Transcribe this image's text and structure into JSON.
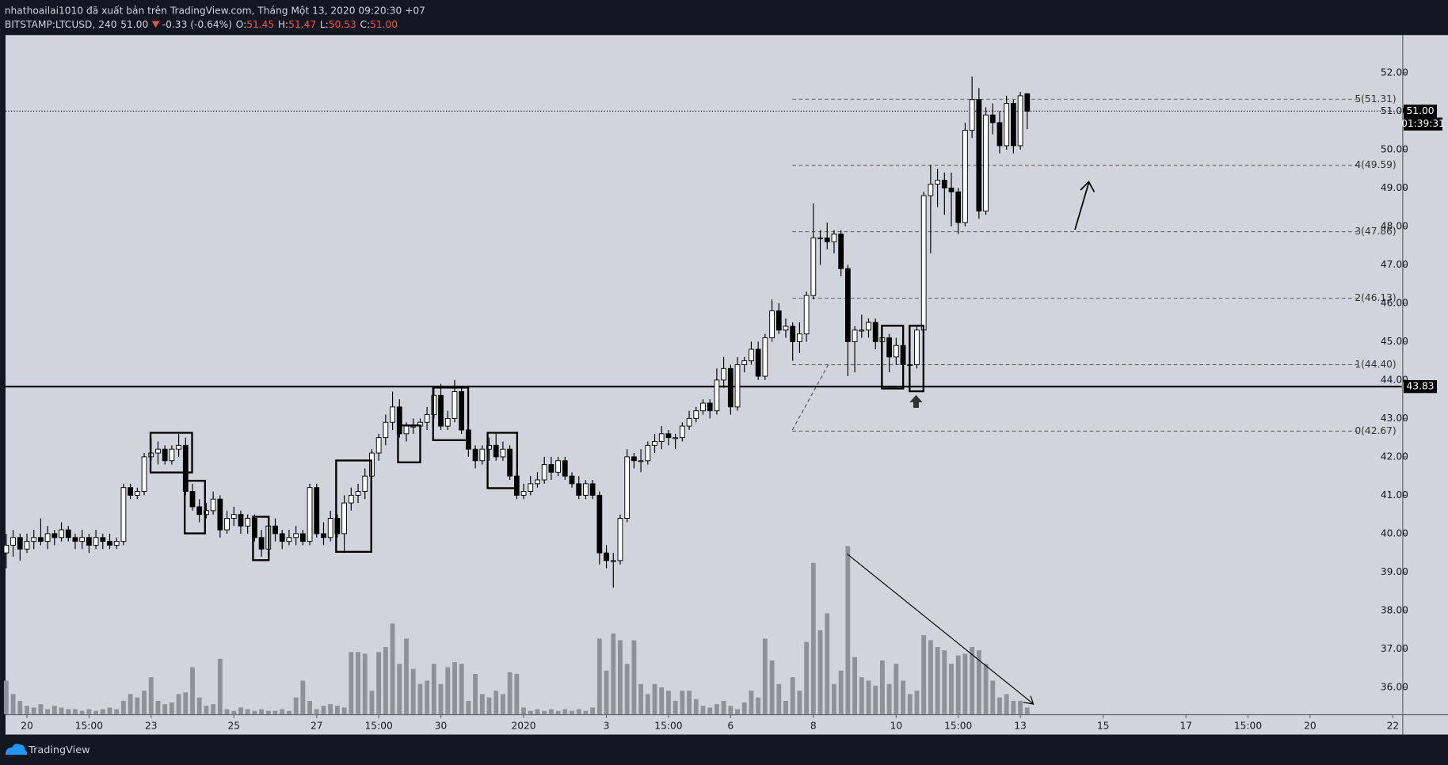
{
  "header": {
    "publisher_line": "nhathoailai1010 đã xuất bản trên TradingView.com, Tháng Một 13, 2020 09:20:30 +07",
    "symbol": "BITSTAMP:LTCUSD, 240",
    "price": "51.00",
    "change": "-0.33 (-0.64%)",
    "ohlc": [
      {
        "label": "O:",
        "value": "51.45"
      },
      {
        "label": "H:",
        "value": "51.47"
      },
      {
        "label": "L:",
        "value": "50.53"
      },
      {
        "label": "C:",
        "value": "51.00"
      }
    ]
  },
  "footer": {
    "brand": "TradingView"
  },
  "chart_data": {
    "type": "candlestick",
    "xlim": [
      -0.1,
      202.3
    ],
    "xticks": [
      {
        "value": 3,
        "label": "20"
      },
      {
        "value": 12,
        "label": "15:00"
      },
      {
        "value": 21,
        "label": "23"
      },
      {
        "value": 33,
        "label": "25"
      },
      {
        "value": 45,
        "label": "27"
      },
      {
        "value": 54,
        "label": "15:00"
      },
      {
        "value": 63,
        "label": "30"
      },
      {
        "value": 75,
        "label": "2020"
      },
      {
        "value": 87,
        "label": "3"
      },
      {
        "value": 96,
        "label": "15:00"
      },
      {
        "value": 105,
        "label": "6"
      },
      {
        "value": 117,
        "label": "8"
      },
      {
        "value": 129,
        "label": "10"
      },
      {
        "value": 138,
        "label": "15:00"
      },
      {
        "value": 147,
        "label": "13"
      },
      {
        "value": 159,
        "label": "15"
      },
      {
        "value": 171,
        "label": "17"
      },
      {
        "value": 180,
        "label": "15:00"
      },
      {
        "value": 189,
        "label": "20"
      },
      {
        "value": 201,
        "label": "22"
      }
    ],
    "ylim": [
      35.3,
      52.98
    ],
    "yticks": [
      {
        "value": 36,
        "label": "36.00"
      },
      {
        "value": 37,
        "label": "37.00"
      },
      {
        "value": 38,
        "label": "38.00"
      },
      {
        "value": 39,
        "label": "39.00"
      },
      {
        "value": 40,
        "label": "40.00"
      },
      {
        "value": 41,
        "label": "41.00"
      },
      {
        "value": 42,
        "label": "42.00"
      },
      {
        "value": 43,
        "label": "43.00"
      },
      {
        "value": 44,
        "label": "44.00"
      },
      {
        "value": 45,
        "label": "45.00"
      },
      {
        "value": 46,
        "label": "46.00"
      },
      {
        "value": 47,
        "label": "47.00"
      },
      {
        "value": 48,
        "label": "48.00"
      },
      {
        "value": 49,
        "label": "49.00"
      },
      {
        "value": 50,
        "label": "50.00"
      },
      {
        "value": 51,
        "label": "51.00"
      },
      {
        "value": 52,
        "label": "52.00"
      }
    ],
    "up_color": "#ffffff",
    "down_color": "#000000",
    "wick_color": "#000000",
    "volume_color": "#8e9198",
    "open": [
      39.5,
      39.7,
      39.9,
      39.6,
      39.8,
      39.9,
      39.8,
      40.0,
      39.9,
      40.1,
      39.9,
      39.8,
      39.9,
      39.7,
      39.9,
      39.8,
      39.7,
      39.8,
      41.2,
      41.0,
      41.1,
      42.0,
      42.1,
      42.2,
      41.9,
      42.2,
      42.3,
      41.1,
      40.7,
      40.5,
      40.6,
      40.9,
      40.1,
      40.4,
      40.5,
      40.2,
      40.4,
      39.9,
      39.6,
      40.2,
      40.0,
      39.8,
      39.9,
      40.0,
      39.8,
      41.2,
      40.0,
      39.9,
      40.4,
      40.0,
      40.8,
      41.0,
      41.1,
      41.5,
      42.1,
      42.5,
      42.9,
      43.3,
      42.6,
      42.8,
      42.8,
      42.9,
      43.1,
      43.6,
      42.8,
      43.0,
      43.7,
      42.7,
      42.2,
      41.9,
      42.2,
      42.3,
      42.0,
      42.2,
      41.5,
      41.0,
      41.1,
      41.3,
      41.4,
      41.8,
      41.6,
      41.9,
      41.5,
      41.3,
      41.0,
      41.3,
      41.0,
      39.5,
      39.3,
      39.3,
      40.4,
      42.0,
      41.9,
      41.9,
      42.3,
      42.4,
      42.6,
      42.5,
      42.5,
      42.8,
      43.0,
      43.2,
      43.4,
      43.2,
      44.0,
      44.3,
      43.3,
      44.4,
      44.5,
      44.8,
      44.1,
      45.1,
      45.8,
      45.3,
      45.4,
      45.0,
      45.2,
      46.2,
      47.7,
      47.7,
      47.6,
      47.8,
      46.9,
      45.0,
      45.3,
      45.3,
      45.5,
      45.0,
      45.1,
      44.6,
      44.9,
      44.4,
      44.4,
      45.3,
      48.8,
      49.1,
      49.2,
      49.0,
      48.9,
      48.1,
      50.5,
      51.3,
      48.4,
      50.9,
      50.7,
      50.1,
      51.2,
      50.1,
      51.45
    ],
    "high": [
      40.0,
      40.1,
      40.0,
      40.0,
      40.1,
      40.4,
      40.2,
      40.1,
      40.3,
      40.2,
      40.0,
      40.1,
      40.0,
      40.1,
      40.0,
      40.0,
      39.9,
      41.3,
      41.3,
      41.2,
      42.1,
      42.5,
      42.4,
      42.3,
      42.3,
      42.6,
      42.5,
      41.3,
      40.9,
      40.8,
      41.1,
      41.0,
      40.6,
      40.7,
      40.6,
      40.5,
      40.5,
      40.1,
      40.3,
      40.4,
      40.1,
      40.1,
      40.2,
      40.1,
      41.3,
      41.3,
      40.3,
      40.6,
      40.5,
      41.0,
      41.2,
      41.3,
      41.7,
      42.2,
      42.6,
      43.1,
      43.7,
      43.5,
      42.9,
      43.0,
      43.0,
      43.3,
      43.8,
      43.9,
      43.2,
      44.0,
      43.8,
      42.9,
      42.3,
      42.3,
      42.5,
      42.6,
      42.4,
      42.3,
      41.6,
      41.3,
      41.5,
      41.6,
      42.0,
      42.0,
      42.0,
      42.0,
      41.6,
      41.5,
      41.4,
      41.4,
      41.1,
      39.7,
      39.5,
      40.5,
      42.2,
      42.1,
      42.2,
      42.4,
      42.6,
      42.8,
      42.7,
      42.6,
      42.9,
      43.2,
      43.3,
      43.5,
      43.5,
      44.3,
      44.6,
      44.4,
      44.6,
      44.6,
      45.0,
      45.0,
      45.2,
      46.1,
      46.0,
      45.6,
      45.5,
      45.5,
      46.3,
      48.6,
      47.9,
      48.1,
      47.9,
      47.9,
      47.0,
      45.4,
      45.7,
      45.6,
      45.6,
      45.3,
      45.2,
      45.1,
      45.0,
      44.6,
      45.4,
      48.9,
      49.6,
      49.5,
      49.4,
      49.4,
      49.0,
      50.7,
      51.9,
      51.6,
      51.1,
      51.2,
      51.0,
      51.4,
      51.3,
      51.5,
      51.47
    ],
    "low": [
      39.1,
      39.4,
      39.3,
      39.5,
      39.6,
      39.7,
      39.6,
      39.7,
      39.8,
      39.8,
      39.6,
      39.6,
      39.5,
      39.6,
      39.6,
      39.6,
      39.6,
      39.7,
      40.9,
      40.9,
      41.0,
      41.9,
      41.8,
      41.8,
      41.8,
      42.0,
      41.0,
      40.6,
      40.3,
      40.4,
      40.5,
      39.9,
      40.0,
      40.2,
      40.0,
      40.0,
      39.8,
      39.4,
      39.5,
      39.8,
      39.6,
      39.7,
      39.7,
      39.7,
      39.7,
      39.9,
      39.7,
      39.8,
      39.9,
      39.5,
      40.6,
      40.8,
      40.9,
      41.4,
      41.9,
      42.3,
      42.7,
      42.5,
      42.4,
      42.6,
      42.6,
      42.7,
      43.0,
      42.7,
      42.7,
      42.9,
      42.6,
      42.0,
      41.7,
      41.8,
      41.9,
      41.9,
      41.9,
      41.4,
      40.9,
      40.9,
      41.0,
      41.2,
      41.3,
      41.4,
      41.5,
      41.4,
      41.2,
      40.9,
      40.9,
      40.9,
      39.2,
      39.1,
      38.6,
      39.2,
      40.3,
      41.7,
      41.6,
      41.8,
      42.1,
      42.2,
      42.3,
      42.2,
      42.4,
      42.7,
      42.9,
      43.1,
      43.0,
      43.1,
      43.8,
      43.1,
      43.2,
      44.2,
      44.4,
      44.0,
      44.0,
      45.0,
      45.2,
      45.1,
      44.5,
      44.7,
      45.0,
      46.1,
      47.0,
      47.4,
      47.3,
      46.7,
      44.1,
      44.2,
      45.1,
      45.1,
      44.8,
      44.9,
      44.2,
      44.4,
      44.2,
      43.8,
      44.3,
      45.2,
      47.3,
      48.5,
      48.3,
      48.0,
      47.8,
      48.0,
      50.3,
      48.2,
      48.3,
      50.4,
      49.9,
      50.0,
      49.9,
      50.0,
      50.53
    ],
    "close": [
      39.7,
      39.9,
      39.6,
      39.8,
      39.9,
      39.8,
      40.0,
      39.9,
      40.1,
      39.9,
      39.8,
      39.9,
      39.7,
      39.9,
      39.8,
      39.7,
      39.8,
      41.2,
      41.0,
      41.1,
      42.0,
      42.1,
      42.2,
      41.9,
      42.2,
      42.3,
      41.1,
      40.7,
      40.5,
      40.6,
      40.9,
      40.1,
      40.4,
      40.5,
      40.2,
      40.4,
      39.9,
      39.6,
      40.2,
      40.0,
      39.8,
      39.9,
      40.0,
      39.8,
      41.2,
      40.0,
      39.9,
      40.4,
      40.0,
      40.8,
      41.0,
      41.1,
      41.5,
      42.1,
      42.5,
      42.9,
      43.3,
      42.6,
      42.8,
      42.8,
      42.9,
      43.1,
      43.6,
      42.8,
      43.0,
      43.7,
      42.7,
      42.2,
      41.9,
      42.2,
      42.3,
      42.0,
      42.2,
      41.5,
      41.0,
      41.1,
      41.3,
      41.4,
      41.8,
      41.6,
      41.9,
      41.5,
      41.3,
      41.0,
      41.3,
      41.0,
      39.5,
      39.3,
      39.3,
      40.4,
      42.0,
      41.9,
      41.9,
      42.3,
      42.4,
      42.6,
      42.5,
      42.5,
      42.8,
      43.0,
      43.2,
      43.4,
      43.2,
      44.0,
      44.3,
      43.3,
      44.4,
      44.5,
      44.8,
      44.1,
      45.1,
      45.8,
      45.3,
      45.4,
      45.0,
      45.2,
      46.2,
      47.7,
      47.7,
      47.6,
      47.8,
      46.9,
      45.0,
      45.3,
      45.3,
      45.5,
      45.0,
      45.1,
      44.6,
      44.9,
      44.4,
      44.4,
      45.3,
      48.8,
      49.1,
      49.2,
      49.0,
      48.9,
      48.1,
      50.5,
      51.3,
      48.4,
      50.9,
      50.7,
      50.1,
      51.2,
      50.1,
      51.4,
      51.0
    ],
    "volume": {
      "ylim": [
        0,
        404
      ],
      "values": [
        20,
        12,
        8,
        5,
        4,
        6,
        3,
        5,
        4,
        3,
        3,
        2,
        3,
        2,
        3,
        4,
        3,
        8,
        12,
        10,
        14,
        22,
        8,
        6,
        7,
        12,
        13,
        28,
        10,
        5,
        6,
        33,
        3,
        2,
        4,
        3,
        2,
        3,
        2,
        2,
        3,
        2,
        10,
        20,
        8,
        3,
        5,
        6,
        5,
        4,
        37,
        37,
        36,
        14,
        37,
        40,
        54,
        30,
        45,
        27,
        18,
        20,
        30,
        18,
        28,
        31,
        30,
        8,
        24,
        12,
        10,
        14,
        12,
        25,
        24,
        4,
        2,
        3,
        2,
        3,
        2,
        3,
        2,
        3,
        2,
        4,
        45,
        26,
        48,
        44,
        30,
        44,
        18,
        12,
        18,
        16,
        14,
        8,
        14,
        14,
        9,
        5,
        4,
        6,
        8,
        5,
        3,
        7,
        14,
        10,
        45,
        32,
        18,
        8,
        22,
        14,
        43,
        90,
        50,
        60,
        18,
        26,
        100,
        34,
        22,
        20,
        17,
        32,
        18,
        30,
        20,
        12,
        14,
        47,
        44,
        40,
        38,
        30,
        35,
        36,
        40,
        38,
        30,
        20,
        10,
        12,
        8,
        8,
        4
      ]
    },
    "levels": [
      {
        "label": "5(51.31)",
        "value": 51.31
      },
      {
        "label": "4(49.59)",
        "value": 49.59
      },
      {
        "label": "3(47.86)",
        "value": 47.86
      },
      {
        "label": "2(46.13)",
        "value": 46.13
      },
      {
        "label": "1(44.40)",
        "value": 44.4
      },
      {
        "label": "0(42.67)",
        "value": 42.67
      }
    ],
    "last_price": {
      "value": 51,
      "label": "51.00"
    },
    "countdown": "01:39:31",
    "support": {
      "value": 43.83,
      "label": "43.83"
    }
  }
}
